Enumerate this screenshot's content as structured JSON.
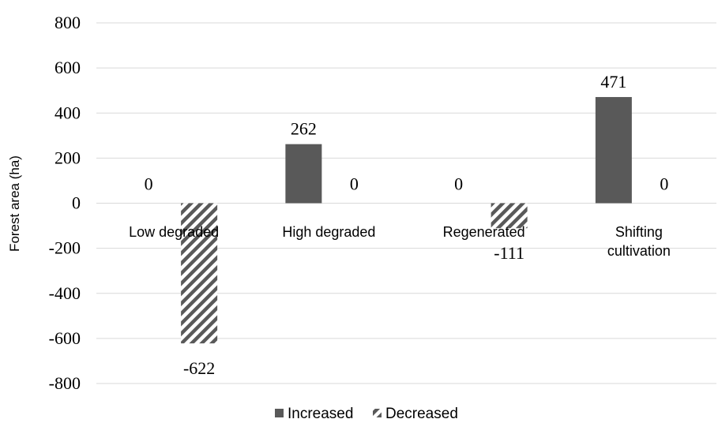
{
  "chart_data": {
    "type": "bar",
    "categories": [
      "Low degraded",
      "High degraded",
      "Regenerated",
      "Shifting cultivation"
    ],
    "category_lines": [
      [
        "Low degraded"
      ],
      [
        "High degraded"
      ],
      [
        "Regenerated"
      ],
      [
        "Shifting",
        "cultivation"
      ]
    ],
    "series": [
      {
        "name": "Increased",
        "values": [
          0,
          262,
          0,
          471
        ],
        "color": "#595959",
        "pattern": "solid"
      },
      {
        "name": "Decreased",
        "values": [
          -622,
          0,
          -111,
          0
        ],
        "color": "#595959",
        "pattern": "diagonal-hatch"
      }
    ],
    "ylabel": "Forest area (ha)",
    "xlabel": "",
    "ylim": [
      -800,
      800
    ],
    "yticks": [
      800,
      600,
      400,
      200,
      0,
      -200,
      -400,
      -600,
      -800
    ],
    "grid": true,
    "legend_position": "bottom"
  }
}
